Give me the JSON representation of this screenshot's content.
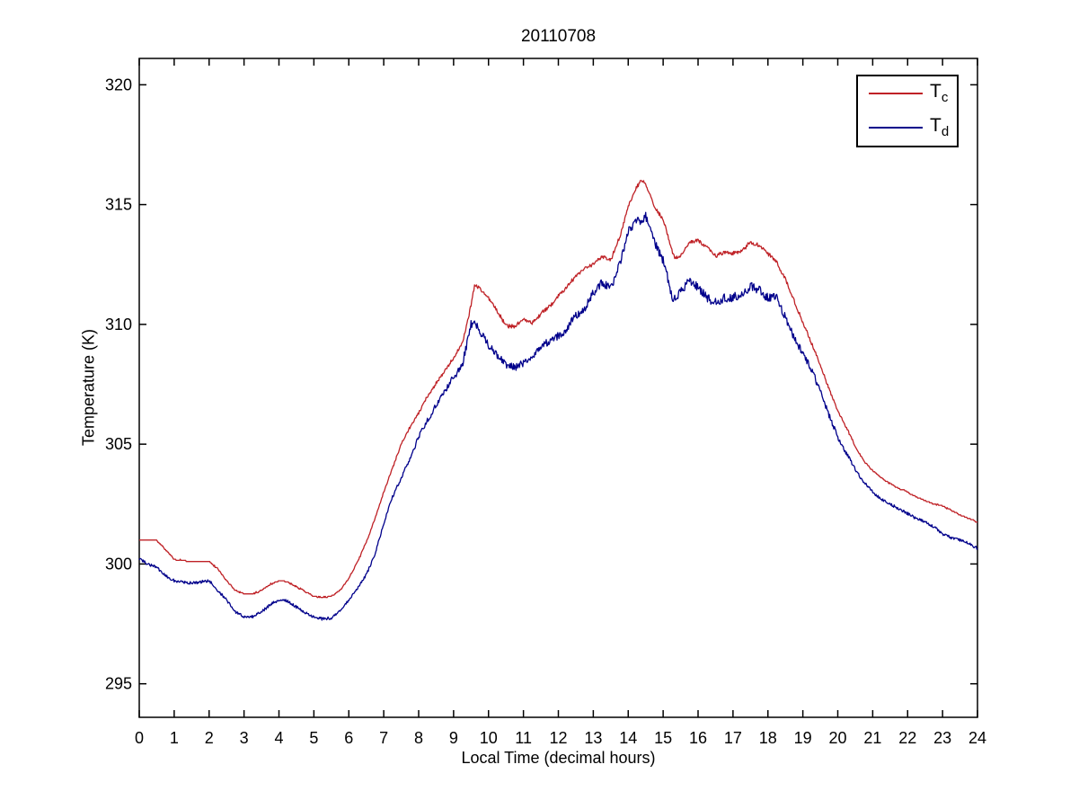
{
  "figure": {
    "background_color": "#ffffff",
    "axis_color": "#000000",
    "text_color": "#000000"
  },
  "chart_data": {
    "type": "line",
    "title": "20110708",
    "xlabel": "Local Time (decimal hours)",
    "ylabel": "Temperature (K)",
    "xlim": [
      0,
      24
    ],
    "ylim": [
      293.6,
      321.1
    ],
    "xticks": [
      0,
      1,
      2,
      3,
      4,
      5,
      6,
      7,
      8,
      9,
      10,
      11,
      12,
      13,
      14,
      15,
      16,
      17,
      18,
      19,
      20,
      21,
      22,
      23,
      24
    ],
    "yticks": [
      295,
      300,
      305,
      310,
      315,
      320
    ],
    "grid": false,
    "legend": {
      "position": "top-right",
      "border": true
    },
    "x": [
      0,
      0.25,
      0.5,
      0.75,
      1,
      1.25,
      1.5,
      1.75,
      2,
      2.25,
      2.5,
      2.75,
      3,
      3.25,
      3.5,
      3.75,
      4,
      4.25,
      4.5,
      4.75,
      5,
      5.25,
      5.5,
      5.75,
      6,
      6.25,
      6.5,
      6.75,
      7,
      7.25,
      7.5,
      7.75,
      8,
      8.25,
      8.5,
      8.75,
      9,
      9.25,
      9.5,
      9.6,
      9.75,
      10,
      10.25,
      10.5,
      10.75,
      11,
      11.25,
      11.5,
      11.75,
      12,
      12.25,
      12.5,
      12.75,
      13,
      13.25,
      13.5,
      13.75,
      14,
      14.25,
      14.4,
      14.5,
      14.75,
      15,
      15.25,
      15.35,
      15.5,
      15.75,
      16,
      16.25,
      16.5,
      16.75,
      17,
      17.25,
      17.5,
      17.75,
      18,
      18.25,
      18.5,
      18.75,
      19,
      19.25,
      19.5,
      19.75,
      20,
      20.25,
      20.5,
      20.75,
      21,
      21.25,
      21.5,
      21.75,
      22,
      22.25,
      22.5,
      22.75,
      23,
      23.25,
      23.5,
      23.75,
      24
    ],
    "series": [
      {
        "name": "Tc",
        "legend_main": "T",
        "legend_sub": "c",
        "color": "#bf2126",
        "noise_amplitude": 0.05,
        "quantization": 0.05,
        "values": [
          301.0,
          301.0,
          301.0,
          300.6,
          300.2,
          300.15,
          300.1,
          300.1,
          300.1,
          299.8,
          299.3,
          298.9,
          298.75,
          298.75,
          298.9,
          299.15,
          299.3,
          299.25,
          299.05,
          298.85,
          298.65,
          298.6,
          298.65,
          298.9,
          299.4,
          300.1,
          300.9,
          301.9,
          303.0,
          304.0,
          305.0,
          305.7,
          306.3,
          307.0,
          307.55,
          308.05,
          308.6,
          309.2,
          310.8,
          311.65,
          311.5,
          311.1,
          310.55,
          309.95,
          309.9,
          310.25,
          310.05,
          310.45,
          310.75,
          311.2,
          311.6,
          312.0,
          312.3,
          312.5,
          312.85,
          312.7,
          313.6,
          314.9,
          315.75,
          316.0,
          315.85,
          314.9,
          314.4,
          313.1,
          312.75,
          312.85,
          313.4,
          313.5,
          313.25,
          312.85,
          313.0,
          312.95,
          313.1,
          313.4,
          313.3,
          312.95,
          312.6,
          311.9,
          311.0,
          310.1,
          309.2,
          308.3,
          307.3,
          306.4,
          305.7,
          304.9,
          304.3,
          303.9,
          303.6,
          303.35,
          303.15,
          303.0,
          302.8,
          302.65,
          302.5,
          302.4,
          302.25,
          302.05,
          301.9,
          301.75
        ]
      },
      {
        "name": "Td",
        "legend_main": "T",
        "legend_sub": "d",
        "color": "#00008b",
        "noise_amplitude": 0.13,
        "quantization": 0,
        "values": [
          300.2,
          300.0,
          299.85,
          299.5,
          299.3,
          299.25,
          299.2,
          299.25,
          299.3,
          298.9,
          298.5,
          298.0,
          297.8,
          297.8,
          298.0,
          298.3,
          298.5,
          298.45,
          298.2,
          297.95,
          297.8,
          297.7,
          297.75,
          298.05,
          298.5,
          299.0,
          299.55,
          300.4,
          301.7,
          302.8,
          303.6,
          304.4,
          305.3,
          306.0,
          306.6,
          307.2,
          307.8,
          308.3,
          310.0,
          310.05,
          309.7,
          309.1,
          308.7,
          308.3,
          308.2,
          308.4,
          308.65,
          309.0,
          309.35,
          309.5,
          309.85,
          310.4,
          310.65,
          311.3,
          311.8,
          311.45,
          312.5,
          313.9,
          314.25,
          314.4,
          314.5,
          313.4,
          312.7,
          311.2,
          311.0,
          311.4,
          311.8,
          311.55,
          311.1,
          310.95,
          311.1,
          311.1,
          311.3,
          311.6,
          311.45,
          311.1,
          311.15,
          310.3,
          309.4,
          308.8,
          308.1,
          307.2,
          306.2,
          305.3,
          304.6,
          303.95,
          303.4,
          303.0,
          302.7,
          302.5,
          302.3,
          302.1,
          301.9,
          301.75,
          301.55,
          301.25,
          301.1,
          301.0,
          300.85,
          300.65
        ]
      }
    ]
  }
}
